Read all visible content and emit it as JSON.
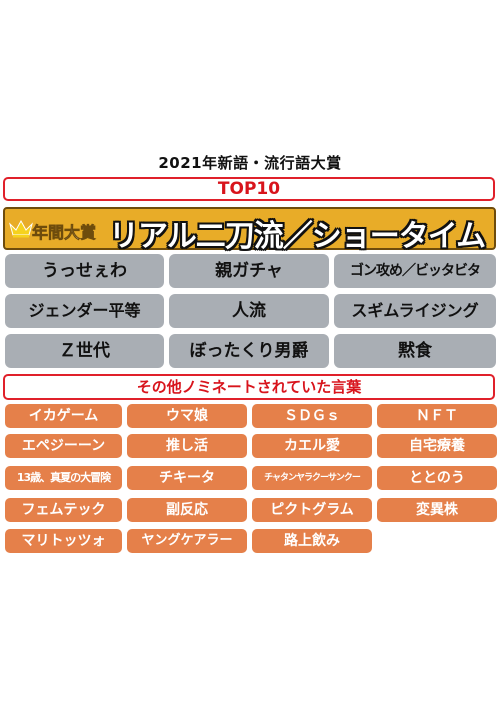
{
  "title": "2021年新語・流行語大賞",
  "top10_heading": "TOP10",
  "grand_prize": {
    "label": "年間大賞",
    "word": "リアル二刀流／ショータイム"
  },
  "top10_words": [
    "うっせぇわ",
    "親ガチャ",
    "ゴン攻め／ビッタビタ",
    "ジェンダー平等",
    "人流",
    "スギムライジング",
    "Ｚ世代",
    "ぼったくり男爵",
    "黙食"
  ],
  "nominees_heading": "その他ノミネートされていた言葉",
  "nominees": [
    "イカゲーム",
    "ウマ娘",
    "ＳＤＧｓ",
    "ＮＦＴ",
    "エペジーーン",
    "推し活",
    "カエル愛",
    "自宅療養",
    "13歳、真夏の大冒険",
    "チキータ",
    "チャタンヤラクーサンクー",
    "ととのう",
    "フェムテック",
    "副反応",
    "ピクトグラム",
    "変異株",
    "マリトッツォ",
    "ヤングケアラー",
    "路上飲み"
  ],
  "colors": {
    "banner_border": "#e0202a",
    "grand_bg": "#e8ac28",
    "top10_bg": "#a9aeb4",
    "nominee_bg": "#e5804a"
  },
  "icons": {
    "grand_prize_icon": "crown-icon"
  }
}
